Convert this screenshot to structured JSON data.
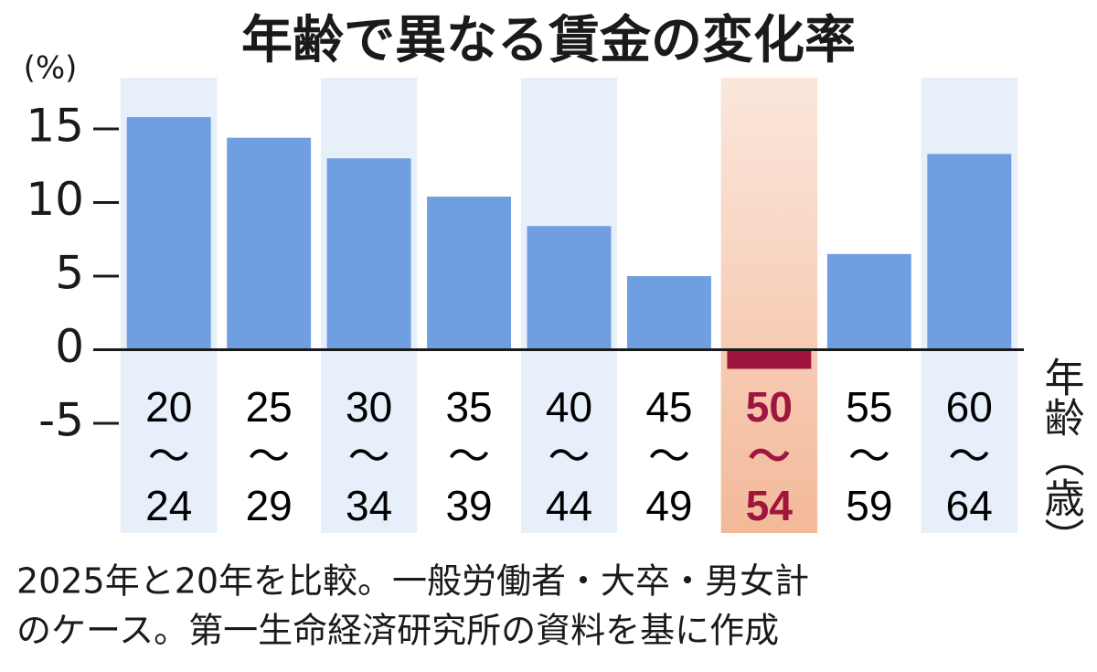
{
  "chart_data": {
    "type": "bar",
    "title": "年齢で異なる賃金の変化率",
    "y_unit": "(%)",
    "x_label": "年齢（歳）",
    "categories": [
      "20〜24",
      "25〜29",
      "30〜34",
      "35〜39",
      "40〜44",
      "45〜49",
      "50〜54",
      "55〜59",
      "60〜64"
    ],
    "values": [
      15.8,
      14.4,
      13.0,
      10.4,
      8.4,
      5.0,
      -1.3,
      6.5,
      13.3
    ],
    "color": "#6f9fe0",
    "colors": [
      "#6f9fe0",
      "#6f9fe0",
      "#6f9fe0",
      "#6f9fe0",
      "#6f9fe0",
      "#6f9fe0",
      "#a0153e",
      "#6f9fe0",
      "#6f9fe0"
    ],
    "ylim": [
      -5,
      15
    ],
    "yticks": [
      -5,
      0,
      5,
      10,
      15
    ],
    "grid": false,
    "notes": [
      "2025年と20年を比較。一般労働者・大卒・男女計",
      "のケース。第一生命経済研究所の資料を基に作成"
    ]
  }
}
